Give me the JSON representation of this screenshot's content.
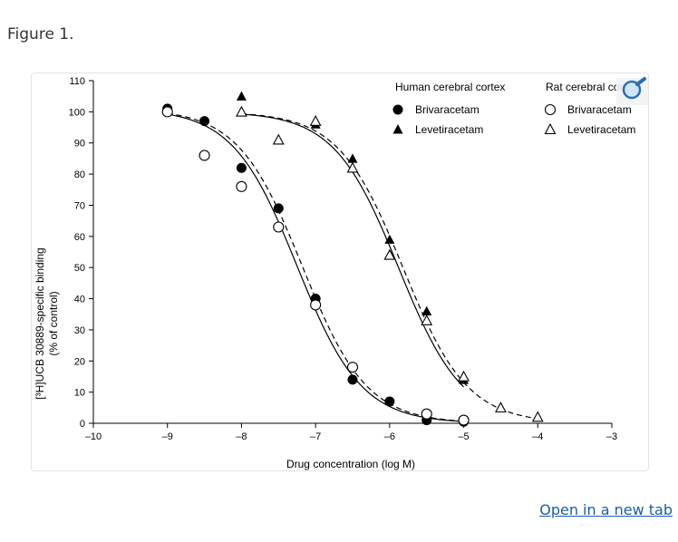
{
  "figure": {
    "caption": "Figure 1.",
    "open_link_label": "Open in a new tab",
    "zoom_icon": "magnifier-icon"
  },
  "colors": {
    "line": "#000000",
    "link": "#1a5ea8"
  },
  "chart_data": {
    "type": "scatter",
    "title": "",
    "xlabel": "Drug concentration (log M)",
    "ylabel_line1": "[³H]UCB 30889-specific binding",
    "ylabel_line2": "(% of control)",
    "xlim": [
      -10,
      -3
    ],
    "ylim": [
      0,
      110
    ],
    "x_ticks": [
      -10,
      -9,
      -8,
      -7,
      -6,
      -5,
      -4,
      -3
    ],
    "x_tick_labels": [
      "–10",
      "–9",
      "–8",
      "–7",
      "–6",
      "–5",
      "–4",
      "–3"
    ],
    "y_ticks": [
      0,
      10,
      20,
      30,
      40,
      50,
      60,
      70,
      80,
      90,
      100,
      110
    ],
    "legend": {
      "placement": "top-right",
      "groups": [
        {
          "title": "Human cerebral cortex",
          "entries": [
            {
              "label": "Brivaracetam",
              "marker": "filled-circle"
            },
            {
              "label": "Levetiracetam",
              "marker": "filled-triangle"
            }
          ]
        },
        {
          "title": "Rat cerebral cortex",
          "entries": [
            {
              "label": "Brivaracetam",
              "marker": "open-circle"
            },
            {
              "label": "Levetiracetam",
              "marker": "open-triangle"
            }
          ]
        }
      ]
    },
    "series": [
      {
        "name": "Human cerebral cortex – Brivaracetam",
        "marker": "filled-circle",
        "fit": "solid",
        "fit_top": 101,
        "fit_bottom": 0,
        "fit_logIC50": -7.25,
        "fit_hill": 1.0,
        "points": [
          [
            -9,
            101
          ],
          [
            -8.5,
            97
          ],
          [
            -8,
            82
          ],
          [
            -7.5,
            69
          ],
          [
            -7,
            40
          ],
          [
            -6.5,
            14
          ],
          [
            -6,
            7
          ],
          [
            -5.5,
            1
          ],
          [
            -5,
            0.5
          ]
        ]
      },
      {
        "name": "Rat cerebral cortex – Brivaracetam",
        "marker": "open-circle",
        "fit": "dashed",
        "fit_top": 101,
        "fit_bottom": 0,
        "fit_logIC50": -7.18,
        "fit_hill": 1.0,
        "points": [
          [
            -9,
            100
          ],
          [
            -8.5,
            86
          ],
          [
            -8,
            76
          ],
          [
            -7.5,
            63
          ],
          [
            -7,
            38
          ],
          [
            -6.5,
            18
          ],
          [
            -5.5,
            3
          ],
          [
            -5,
            1
          ]
        ]
      },
      {
        "name": "Human cerebral cortex – Levetiracetam",
        "marker": "filled-triangle",
        "fit": "solid",
        "fit_top": 100,
        "fit_bottom": 0,
        "fit_logIC50": -5.88,
        "fit_hill": 1.0,
        "points": [
          [
            -8,
            105
          ],
          [
            -7,
            96
          ],
          [
            -6.5,
            85
          ],
          [
            -6,
            59
          ],
          [
            -5.5,
            36
          ],
          [
            -5,
            14
          ]
        ]
      },
      {
        "name": "Rat cerebral cortex – Levetiracetam",
        "marker": "open-triangle",
        "fit": "dashed",
        "fit_top": 100,
        "fit_bottom": 0,
        "fit_logIC50": -5.82,
        "fit_hill": 1.0,
        "points": [
          [
            -8,
            100
          ],
          [
            -7.5,
            91
          ],
          [
            -7,
            97
          ],
          [
            -6.5,
            82
          ],
          [
            -6,
            54
          ],
          [
            -5.5,
            33
          ],
          [
            -5,
            15
          ],
          [
            -4.5,
            5
          ],
          [
            -4,
            2
          ]
        ]
      }
    ]
  }
}
